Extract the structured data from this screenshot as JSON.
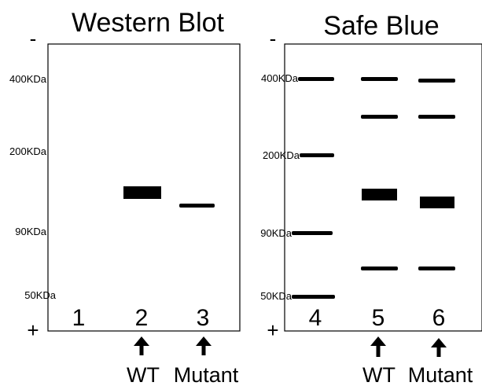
{
  "panels": [
    {
      "title": "Western Blot",
      "polarity": {
        "top": "-",
        "bottom": "+"
      },
      "markers": [
        "400KDa",
        "200KDa",
        "90KDa",
        "50KDa"
      ],
      "lanes": [
        "1",
        "2",
        "3"
      ],
      "captions": [
        "WT",
        "Mutant"
      ]
    },
    {
      "title": "Safe Blue",
      "polarity": {
        "top": "-",
        "bottom": "+"
      },
      "markers": [
        "400KDa",
        "200KDa",
        "90KDa",
        "50KDa"
      ],
      "lanes": [
        "4",
        "5",
        "6"
      ],
      "captions": [
        "WT",
        "Mutant"
      ]
    }
  ],
  "colors": {
    "ink": "#000000",
    "background": "#ffffff"
  },
  "icons": {
    "pointer": "arrow-up-icon"
  }
}
